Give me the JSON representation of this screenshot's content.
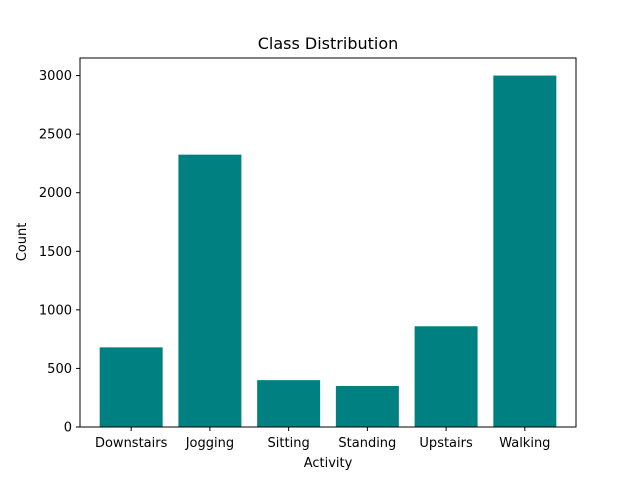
{
  "chart_data": {
    "type": "bar",
    "title": "Class Distribution",
    "xlabel": "Activity",
    "ylabel": "Count",
    "categories": [
      "Downstairs",
      "Jogging",
      "Sitting",
      "Standing",
      "Upstairs",
      "Walking"
    ],
    "values": [
      680,
      2325,
      400,
      350,
      860,
      3000
    ],
    "ylim": [
      0,
      3150
    ],
    "yticks": [
      0,
      500,
      1000,
      1500,
      2000,
      2500,
      3000
    ],
    "grid": false,
    "legend": "none",
    "bar_color": "#008080"
  }
}
